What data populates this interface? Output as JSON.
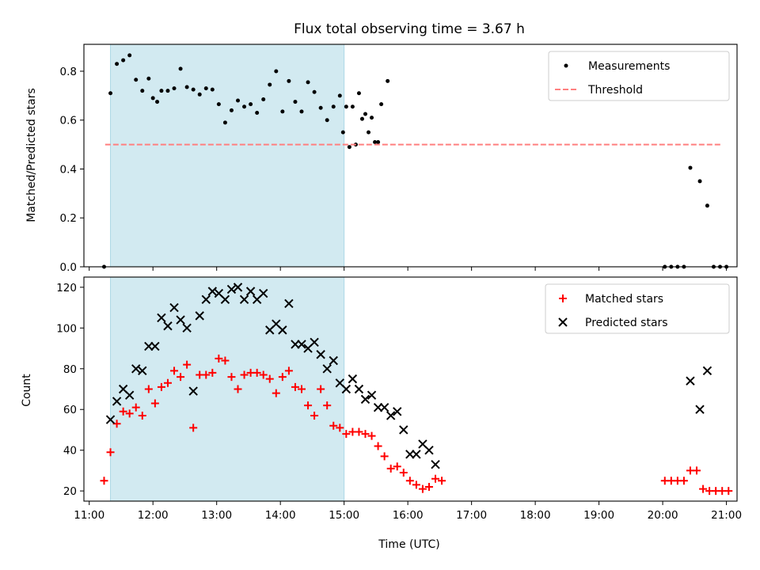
{
  "chart_data": [
    {
      "type": "scatter",
      "title": "Flux total observing time = 3.67 h",
      "xlabel": "",
      "ylabel": "Matched/Predicted stars",
      "xlim": [
        "10:55",
        "21:10"
      ],
      "ylim": [
        0,
        0.91
      ],
      "yticks": [
        "0.0",
        "0.2",
        "0.4",
        "0.6",
        "0.8"
      ],
      "xticks": [
        "11:00",
        "12:00",
        "13:00",
        "14:00",
        "15:00",
        "16:00",
        "17:00",
        "18:00",
        "19:00",
        "20:00",
        "21:00"
      ],
      "shaded_interval": [
        "11:20",
        "15:00"
      ],
      "shade_color": "#add8e6",
      "legend_position": "top-right",
      "series": [
        {
          "name": "Measurements",
          "kind": "points",
          "color": "#000000",
          "points": [
            [
              "11:14",
              0.0
            ],
            [
              "11:20",
              0.71
            ],
            [
              "11:26",
              0.83
            ],
            [
              "11:32",
              0.845
            ],
            [
              "11:38",
              0.865
            ],
            [
              "11:44",
              0.765
            ],
            [
              "11:50",
              0.72
            ],
            [
              "11:56",
              0.77
            ],
            [
              "12:00",
              0.69
            ],
            [
              "12:04",
              0.675
            ],
            [
              "12:08",
              0.72
            ],
            [
              "12:14",
              0.72
            ],
            [
              "12:20",
              0.73
            ],
            [
              "12:26",
              0.81
            ],
            [
              "12:32",
              0.735
            ],
            [
              "12:38",
              0.725
            ],
            [
              "12:44",
              0.705
            ],
            [
              "12:50",
              0.73
            ],
            [
              "12:56",
              0.725
            ],
            [
              "13:02",
              0.665
            ],
            [
              "13:08",
              0.59
            ],
            [
              "13:14",
              0.64
            ],
            [
              "13:20",
              0.68
            ],
            [
              "13:26",
              0.655
            ],
            [
              "13:32",
              0.665
            ],
            [
              "13:38",
              0.63
            ],
            [
              "13:44",
              0.685
            ],
            [
              "13:50",
              0.745
            ],
            [
              "13:56",
              0.8
            ],
            [
              "14:02",
              0.635
            ],
            [
              "14:08",
              0.76
            ],
            [
              "14:14",
              0.675
            ],
            [
              "14:20",
              0.635
            ],
            [
              "14:26",
              0.755
            ],
            [
              "14:32",
              0.715
            ],
            [
              "14:38",
              0.65
            ],
            [
              "14:44",
              0.6
            ],
            [
              "14:50",
              0.655
            ],
            [
              "14:56",
              0.7
            ],
            [
              "15:02",
              0.655
            ],
            [
              "15:08",
              0.655
            ],
            [
              "15:14",
              0.71
            ],
            [
              "15:20",
              0.625
            ],
            [
              "15:26",
              0.61
            ],
            [
              "15:32",
              0.51
            ],
            [
              "14:59",
              0.55
            ],
            [
              "15:05",
              0.49
            ],
            [
              "15:11",
              0.5
            ],
            [
              "15:17",
              0.605
            ],
            [
              "15:23",
              0.55
            ],
            [
              "15:29",
              0.51
            ],
            [
              "15:35",
              0.665
            ],
            [
              "15:41",
              0.76
            ],
            [
              "20:02",
              0.0
            ],
            [
              "20:08",
              0.0
            ],
            [
              "20:14",
              0.0
            ],
            [
              "20:20",
              0.0
            ],
            [
              "20:26",
              0.405
            ],
            [
              "20:35",
              0.35
            ],
            [
              "20:42",
              0.25
            ],
            [
              "20:48",
              0.0
            ],
            [
              "20:54",
              0.0
            ],
            [
              "21:00",
              0.0
            ]
          ]
        },
        {
          "name": "Threshold",
          "kind": "dashed-line",
          "color": "#ff7f7f",
          "points": [
            [
              "11:15",
              0.5
            ],
            [
              "20:55",
              0.5
            ]
          ]
        }
      ]
    },
    {
      "type": "scatter",
      "title": "",
      "xlabel": "Time (UTC)",
      "ylabel": "Count",
      "xlim": [
        "10:55",
        "21:10"
      ],
      "ylim": [
        15,
        125
      ],
      "yticks": [
        "20",
        "40",
        "60",
        "80",
        "100",
        "120"
      ],
      "xticks": [
        "11:00",
        "12:00",
        "13:00",
        "14:00",
        "15:00",
        "16:00",
        "17:00",
        "18:00",
        "19:00",
        "20:00",
        "21:00"
      ],
      "shaded_interval": [
        "11:20",
        "15:00"
      ],
      "shade_color": "#add8e6",
      "legend_position": "top-right",
      "series": [
        {
          "name": "Matched stars",
          "kind": "plus",
          "color": "#ff0000",
          "points": [
            [
              "11:14",
              25
            ],
            [
              "11:20",
              39
            ],
            [
              "11:26",
              53
            ],
            [
              "11:32",
              59
            ],
            [
              "11:38",
              58
            ],
            [
              "11:44",
              61
            ],
            [
              "11:50",
              57
            ],
            [
              "11:56",
              70
            ],
            [
              "12:02",
              63
            ],
            [
              "12:08",
              71
            ],
            [
              "12:14",
              73
            ],
            [
              "12:20",
              79
            ],
            [
              "12:26",
              76
            ],
            [
              "12:32",
              82
            ],
            [
              "12:38",
              51
            ],
            [
              "12:44",
              77
            ],
            [
              "12:50",
              77
            ],
            [
              "12:56",
              78
            ],
            [
              "13:02",
              85
            ],
            [
              "13:08",
              84
            ],
            [
              "13:14",
              76
            ],
            [
              "13:20",
              70
            ],
            [
              "13:26",
              77
            ],
            [
              "13:32",
              78
            ],
            [
              "13:38",
              78
            ],
            [
              "13:44",
              77
            ],
            [
              "13:50",
              75
            ],
            [
              "13:56",
              68
            ],
            [
              "14:02",
              76
            ],
            [
              "14:08",
              79
            ],
            [
              "14:14",
              71
            ],
            [
              "14:20",
              70
            ],
            [
              "14:26",
              62
            ],
            [
              "14:32",
              57
            ],
            [
              "14:38",
              70
            ],
            [
              "14:44",
              62
            ],
            [
              "14:50",
              52
            ],
            [
              "14:56",
              51
            ],
            [
              "15:02",
              48
            ],
            [
              "15:08",
              49
            ],
            [
              "15:14",
              49
            ],
            [
              "15:20",
              48
            ],
            [
              "15:26",
              47
            ],
            [
              "15:32",
              42
            ],
            [
              "15:38",
              37
            ],
            [
              "15:44",
              31
            ],
            [
              "15:50",
              32
            ],
            [
              "15:56",
              29
            ],
            [
              "16:02",
              25
            ],
            [
              "16:08",
              23
            ],
            [
              "16:14",
              21
            ],
            [
              "16:20",
              22
            ],
            [
              "16:26",
              26
            ],
            [
              "16:32",
              25
            ],
            [
              "20:02",
              25
            ],
            [
              "20:08",
              25
            ],
            [
              "20:14",
              25
            ],
            [
              "20:20",
              25
            ],
            [
              "20:26",
              30
            ],
            [
              "20:32",
              30
            ],
            [
              "20:38",
              21
            ],
            [
              "20:44",
              20
            ],
            [
              "20:50",
              20
            ],
            [
              "20:56",
              20
            ],
            [
              "21:02",
              20
            ]
          ]
        },
        {
          "name": "Predicted stars",
          "kind": "x",
          "color": "#000000",
          "points": [
            [
              "11:20",
              55
            ],
            [
              "11:26",
              64
            ],
            [
              "11:32",
              70
            ],
            [
              "11:38",
              67
            ],
            [
              "11:44",
              80
            ],
            [
              "11:50",
              79
            ],
            [
              "11:56",
              91
            ],
            [
              "12:02",
              91
            ],
            [
              "12:08",
              105
            ],
            [
              "12:14",
              101
            ],
            [
              "12:20",
              110
            ],
            [
              "12:26",
              104
            ],
            [
              "12:32",
              100
            ],
            [
              "12:38",
              69
            ],
            [
              "12:44",
              106
            ],
            [
              "12:50",
              114
            ],
            [
              "12:56",
              118
            ],
            [
              "13:02",
              117
            ],
            [
              "13:08",
              114
            ],
            [
              "13:14",
              119
            ],
            [
              "13:20",
              120
            ],
            [
              "13:26",
              114
            ],
            [
              "13:32",
              118
            ],
            [
              "13:38",
              114
            ],
            [
              "13:44",
              117
            ],
            [
              "13:50",
              99
            ],
            [
              "13:56",
              102
            ],
            [
              "14:02",
              99
            ],
            [
              "14:08",
              112
            ],
            [
              "14:14",
              92
            ],
            [
              "14:20",
              92
            ],
            [
              "14:26",
              90
            ],
            [
              "14:32",
              93
            ],
            [
              "14:38",
              87
            ],
            [
              "14:44",
              80
            ],
            [
              "14:50",
              84
            ],
            [
              "14:56",
              73
            ],
            [
              "15:02",
              70
            ],
            [
              "15:08",
              75
            ],
            [
              "15:14",
              70
            ],
            [
              "15:20",
              65
            ],
            [
              "15:26",
              67
            ],
            [
              "15:32",
              61
            ],
            [
              "15:38",
              61
            ],
            [
              "15:44",
              57
            ],
            [
              "15:50",
              59
            ],
            [
              "15:56",
              50
            ],
            [
              "16:02",
              38
            ],
            [
              "16:08",
              38
            ],
            [
              "16:14",
              43
            ],
            [
              "16:20",
              40
            ],
            [
              "16:26",
              33
            ],
            [
              "20:26",
              74
            ],
            [
              "20:35",
              60
            ],
            [
              "20:42",
              79
            ]
          ]
        }
      ]
    }
  ]
}
